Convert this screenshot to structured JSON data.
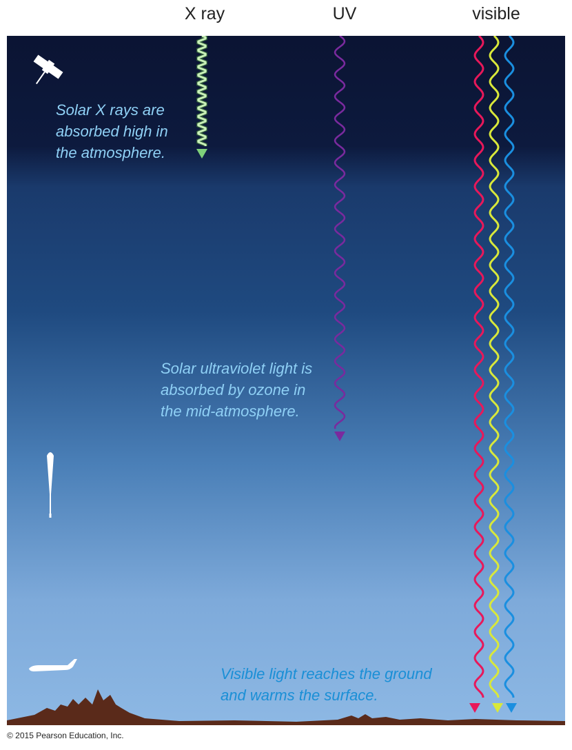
{
  "labels": {
    "xray": "X ray",
    "uv": "UV",
    "visible": "visible"
  },
  "notes": {
    "xray": [
      "Solar X rays are",
      "absorbed high in",
      "the atmosphere."
    ],
    "uv": [
      "Solar ultraviolet light is",
      "absorbed by ozone in",
      "the mid-atmosphere."
    ],
    "visible": [
      "Visible light reaches the ground",
      "and warms the surface."
    ]
  },
  "copyright": "© 2015 Pearson Education, Inc.",
  "icons": [
    "satellite-icon",
    "balloon-icon",
    "airplane-icon",
    "mountains-icon"
  ],
  "colors": {
    "sky_top": "#0b1433",
    "sky_mid": "#1f4a80",
    "sky_bottom": "#8bb3e0",
    "xray_wave": "#c9f0b8",
    "xray_arrow": "#7ed07a",
    "uv_wave": "#7a2a9e",
    "visible_red": "#e8185a",
    "visible_yellow": "#d9e83a",
    "visible_blue": "#1a8fe0",
    "ground": "#5a2a1a"
  }
}
